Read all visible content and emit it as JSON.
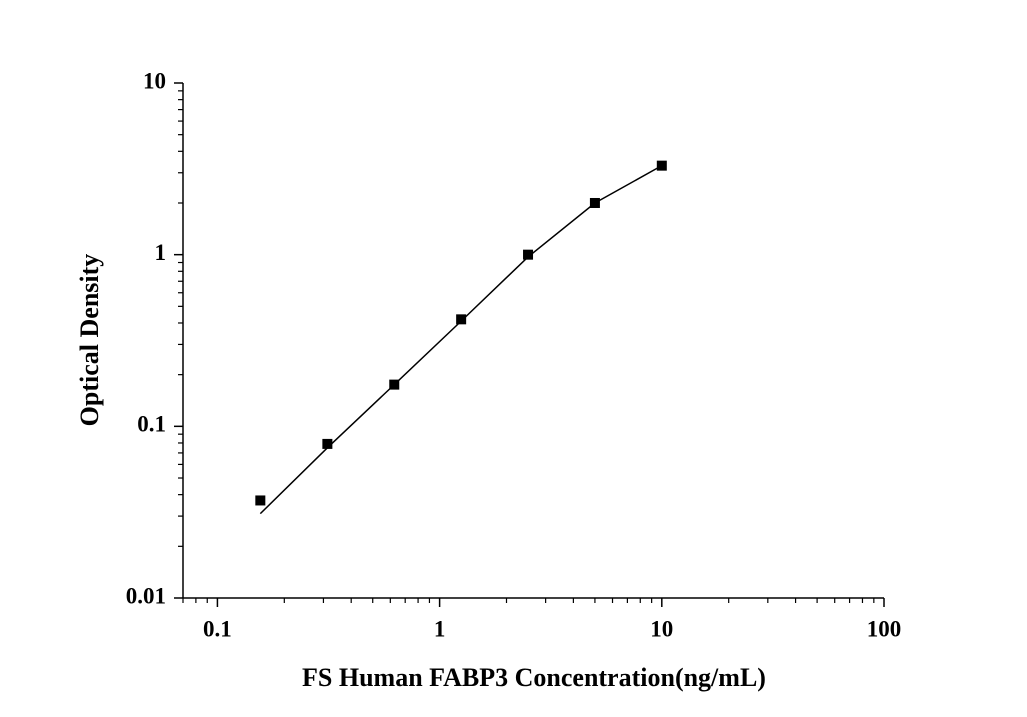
{
  "chart_data": {
    "type": "scatter",
    "x_label": "FS Human FABP3 Concentration(ng/mL)",
    "y_label": "Optical Density",
    "xscale": "log",
    "yscale": "log",
    "minor_ticks": true,
    "xlim": [
      0.07,
      100
    ],
    "xticks": [
      0.1,
      1,
      10,
      100
    ],
    "ylim": [
      0.01,
      10
    ],
    "yticks": [
      0.01,
      0.1,
      1,
      10
    ],
    "series": [
      {
        "color": "#000000",
        "marker": "square",
        "x": [
          0.156,
          0.3125,
          0.625,
          1.25,
          2.5,
          5,
          10
        ],
        "values": [
          0.037,
          0.079,
          0.175,
          0.42,
          1.0,
          2.0,
          3.3
        ]
      },
      {
        "color": "#000000",
        "marker": "line",
        "x": [
          0.156,
          0.3125,
          0.625,
          1.25,
          2.5,
          5,
          10
        ],
        "values": [
          0.031,
          0.075,
          0.175,
          0.41,
          0.97,
          2.0,
          3.3
        ]
      }
    ]
  }
}
